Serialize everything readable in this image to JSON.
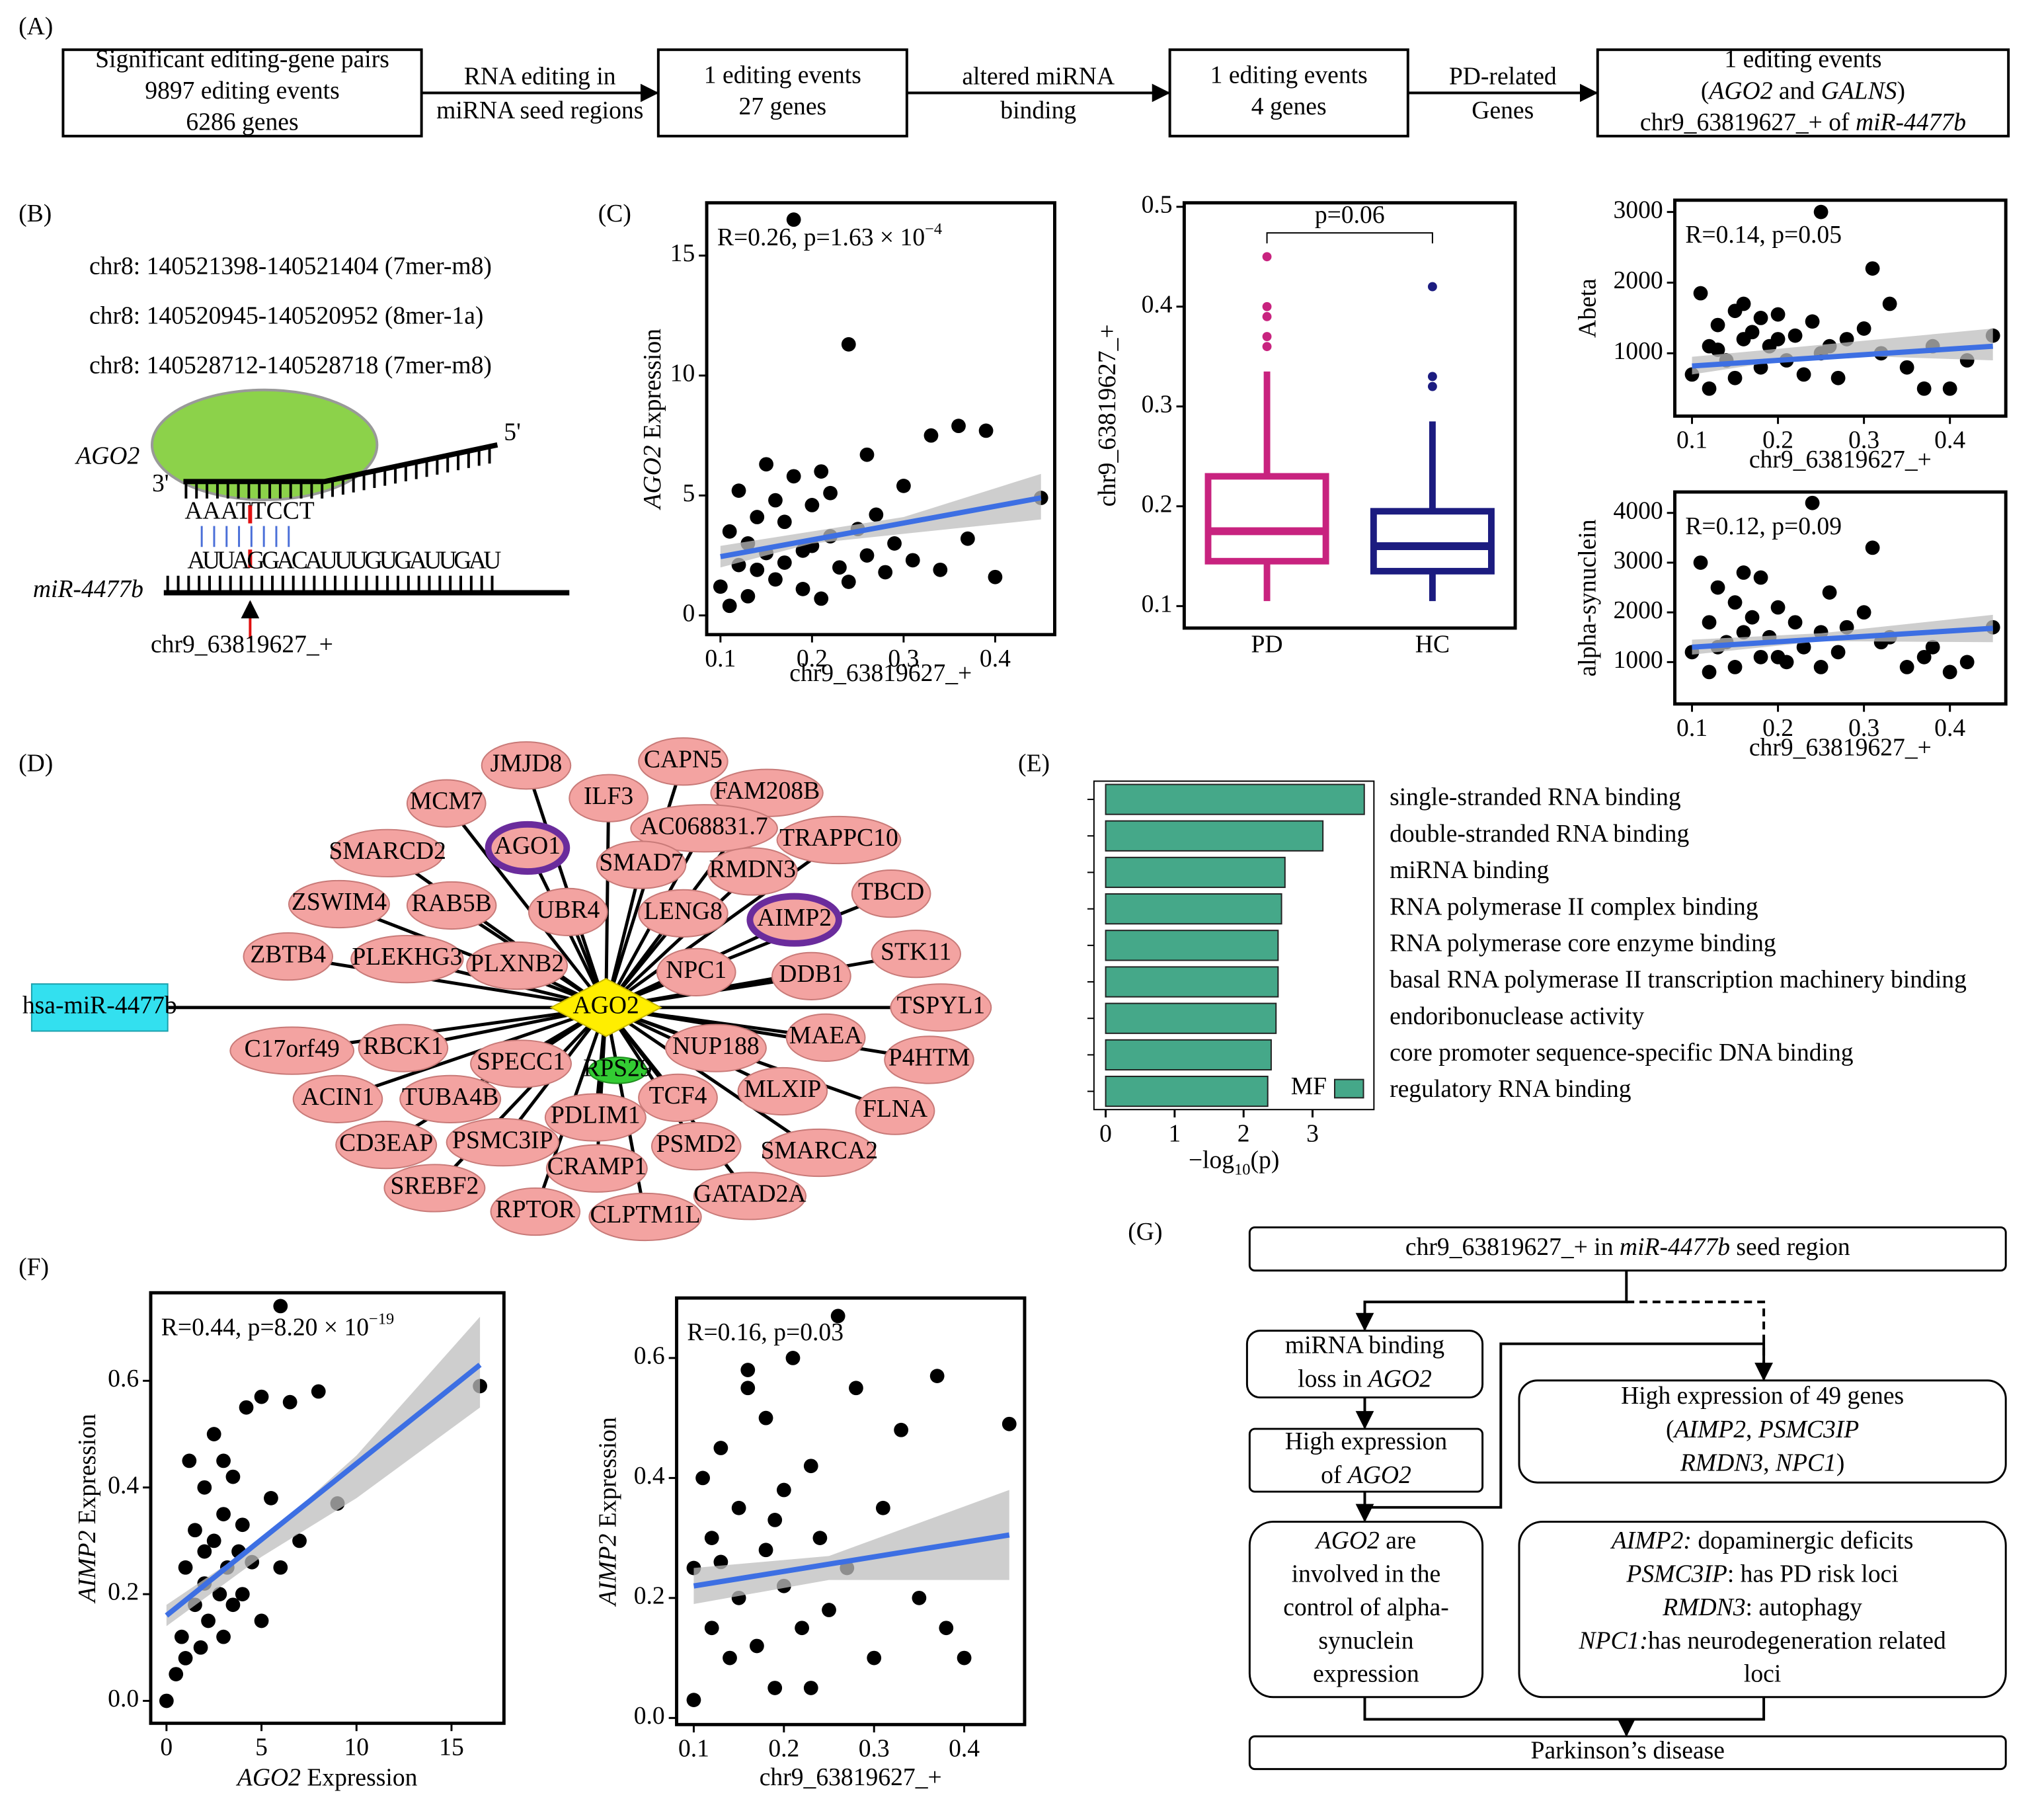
{
  "panel_labels": [
    "(A)",
    "(B)",
    "(C)",
    "(D)",
    "(E)",
    "(F)",
    "(G)"
  ],
  "pipeline": {
    "boxes": [
      [
        "Significant editing-gene pairs",
        "9897 editing events",
        "6286 genes"
      ],
      [
        "1 editing events",
        "27 genes"
      ],
      [
        "1 editing events",
        "4 genes"
      ],
      [
        "1 editing events",
        [
          {
            "text": "("
          },
          {
            "text": "AGO2",
            "italic": true
          },
          {
            "text": " and "
          },
          {
            "text": "GALNS",
            "italic": true
          },
          {
            "text": ")"
          }
        ],
        [
          {
            "text": "chr9_63819627_+ of "
          },
          {
            "text": "miR-4477b",
            "italic": true
          }
        ]
      ]
    ],
    "arrows": [
      [
        "RNA editing in",
        "miRNA seed regions"
      ],
      [
        "altered miRNA",
        "binding"
      ],
      [
        "PD-related",
        "Genes"
      ]
    ]
  },
  "binding_sites": [
    "chr8: 140521398-140521404 (7mer-m8)",
    "chr8: 140520945-140520952 (8mer-1a)",
    "chr8: 140528712-140528718 (7mer-m8)"
  ],
  "binding_diagram": {
    "protein": "AGO2",
    "three_prime": "3'",
    "five_prime": "5'",
    "target_seq": "AAATTCCT",
    "mirna_seq": "AUUAGGACAUUUGUGAUUGAU",
    "mirna": "miR-4477b",
    "site": "chr9_63819627_+"
  },
  "chart_data": [
    {
      "type": "scatter",
      "xlabel": "chr9_63819627_+",
      "ylabel": [
        {
          "text": "AGO2",
          "italic": true
        },
        {
          "text": " Expression"
        }
      ],
      "annotation": [
        {
          "text": "R=0.26, p=1.63 × 10"
        },
        {
          "text": "−4",
          "sup": true
        }
      ],
      "x": [
        0.1,
        0.11,
        0.12,
        0.12,
        0.13,
        0.14,
        0.15,
        0.15,
        0.16,
        0.17,
        0.17,
        0.18,
        0.18,
        0.19,
        0.2,
        0.2,
        0.21,
        0.22,
        0.22,
        0.23,
        0.24,
        0.24,
        0.25,
        0.26,
        0.26,
        0.27,
        0.28,
        0.29,
        0.3,
        0.31,
        0.33,
        0.34,
        0.36,
        0.37,
        0.39,
        0.4,
        0.45,
        0.13,
        0.16,
        0.19,
        0.21,
        0.11,
        0.14
      ],
      "y": [
        1.2,
        3.5,
        2.1,
        5.2,
        0.8,
        4.1,
        2.6,
        6.3,
        1.5,
        3.9,
        2.2,
        16.5,
        5.8,
        1.1,
        2.9,
        4.6,
        0.7,
        3.3,
        5.1,
        2.0,
        11.3,
        1.4,
        3.6,
        6.7,
        2.5,
        4.2,
        1.8,
        3.0,
        5.4,
        2.3,
        7.5,
        1.9,
        7.9,
        3.2,
        7.7,
        1.6,
        4.9,
        3.0,
        4.8,
        2.7,
        6.0,
        0.4,
        1.9
      ],
      "xlim": [
        0.085,
        0.465
      ],
      "ylim": [
        -0.8,
        17.2
      ],
      "xticks": [
        0.1,
        0.2,
        0.3,
        0.4
      ],
      "yticks": [
        0,
        5,
        10,
        15
      ],
      "fit": {
        "x": [
          0.1,
          0.45
        ],
        "y": [
          2.45,
          4.9
        ]
      },
      "band": {
        "x": [
          0.1,
          0.2,
          0.3,
          0.45
        ],
        "lower": [
          2.0,
          3.0,
          3.4,
          4.0
        ],
        "upper": [
          2.9,
          3.5,
          4.1,
          5.9
        ]
      },
      "point_color": "#000000",
      "fit_color": "#3d6fe3",
      "band_color": "#bdbdbd"
    },
    {
      "type": "box",
      "ylabel": "chr9_63819627_+",
      "categories": [
        "PD",
        "HC"
      ],
      "boxes": [
        {
          "low": 0.105,
          "q1": 0.145,
          "median": 0.175,
          "q3": 0.23,
          "high": 0.335,
          "outliers": [
            0.36,
            0.37,
            0.39,
            0.4,
            0.45
          ]
        },
        {
          "low": 0.105,
          "q1": 0.135,
          "median": 0.16,
          "q3": 0.195,
          "high": 0.285,
          "outliers": [
            0.32,
            0.33,
            0.42
          ]
        }
      ],
      "colors": [
        "#c8237f",
        "#1c1c80"
      ],
      "ylim": [
        0.078,
        0.504
      ],
      "yticks": [
        0.1,
        0.2,
        0.3,
        0.4,
        0.5
      ],
      "annotation": "p=0.06"
    },
    {
      "type": "scatter",
      "xlabel": "chr9_63819627_+",
      "ylabel": "Abeta",
      "annotation": "R=0.14, p=0.05",
      "x": [
        0.1,
        0.11,
        0.12,
        0.12,
        0.13,
        0.14,
        0.15,
        0.15,
        0.16,
        0.17,
        0.18,
        0.18,
        0.19,
        0.2,
        0.21,
        0.22,
        0.23,
        0.24,
        0.25,
        0.25,
        0.26,
        0.27,
        0.28,
        0.3,
        0.31,
        0.32,
        0.33,
        0.35,
        0.37,
        0.38,
        0.4,
        0.42,
        0.45,
        0.13,
        0.16,
        0.2
      ],
      "y": [
        700,
        1850,
        1100,
        500,
        1400,
        900,
        1600,
        650,
        1200,
        1300,
        800,
        1500,
        1100,
        1550,
        900,
        1250,
        700,
        1450,
        3000,
        1000,
        1100,
        650,
        1200,
        1350,
        2200,
        1000,
        1700,
        800,
        500,
        1100,
        500,
        900,
        1250,
        1050,
        1700,
        1200
      ],
      "xlim": [
        0.08,
        0.465
      ],
      "ylim": [
        111,
        3167
      ],
      "xticks": [
        0.1,
        0.2,
        0.3,
        0.4
      ],
      "yticks": [
        1000,
        2000,
        3000
      ],
      "fit": {
        "x": [
          0.1,
          0.45
        ],
        "y": [
          820,
          1100
        ]
      },
      "band": {
        "x": [
          0.1,
          0.25,
          0.45
        ],
        "lower": [
          700,
          980,
          900
        ],
        "upper": [
          950,
          1120,
          1350
        ]
      },
      "point_color": "#000000",
      "fit_color": "#3d6fe3",
      "band_color": "#bdbdbd"
    },
    {
      "type": "scatter",
      "xlabel": "chr9_63819627_+",
      "ylabel": "alpha-synuclein",
      "annotation": "R=0.12, p=0.09",
      "x": [
        0.1,
        0.11,
        0.12,
        0.12,
        0.13,
        0.14,
        0.15,
        0.15,
        0.16,
        0.17,
        0.18,
        0.18,
        0.19,
        0.2,
        0.21,
        0.22,
        0.23,
        0.24,
        0.25,
        0.25,
        0.26,
        0.27,
        0.28,
        0.3,
        0.31,
        0.32,
        0.33,
        0.35,
        0.37,
        0.38,
        0.4,
        0.42,
        0.45,
        0.13,
        0.16,
        0.2
      ],
      "y": [
        1200,
        3000,
        1800,
        800,
        2500,
        1400,
        2200,
        900,
        1600,
        1900,
        1100,
        2700,
        1500,
        2100,
        1000,
        1800,
        1300,
        4200,
        1600,
        900,
        2400,
        1200,
        1700,
        2000,
        3300,
        1400,
        1500,
        900,
        1100,
        1300,
        800,
        1000,
        1700,
        1300,
        2800,
        1100
      ],
      "xlim": [
        0.08,
        0.465
      ],
      "ylim": [
        158,
        4421
      ],
      "xticks": [
        0.1,
        0.2,
        0.3,
        0.4
      ],
      "yticks": [
        1000,
        2000,
        3000,
        4000
      ],
      "fit": {
        "x": [
          0.1,
          0.45
        ],
        "y": [
          1300,
          1680
        ]
      },
      "band": {
        "x": [
          0.1,
          0.25,
          0.45
        ],
        "lower": [
          1150,
          1420,
          1400
        ],
        "upper": [
          1450,
          1580,
          1950
        ]
      },
      "point_color": "#000000",
      "fit_color": "#3d6fe3",
      "band_color": "#bdbdbd"
    },
    {
      "type": "bar",
      "orientation": "horizontal",
      "categories": [
        "single-stranded RNA binding",
        "double-stranded RNA binding",
        "miRNA binding",
        "RNA polymerase II complex binding",
        "RNA polymerase core enzyme binding",
        "basal RNA polymerase II transcription machinery binding",
        "endoribonuclease activity",
        "core promoter sequence-specific DNA binding",
        "regulatory RNA binding"
      ],
      "values": [
        3.75,
        3.15,
        2.6,
        2.55,
        2.5,
        2.5,
        2.47,
        2.4,
        2.35
      ],
      "color": "#45a889",
      "xlim": [
        -0.17,
        3.89
      ],
      "xticks": [
        0,
        1,
        2,
        3
      ],
      "xlabel": [
        {
          "text": "−log"
        },
        {
          "text": "10",
          "sub": true
        },
        {
          "text": "(p)"
        }
      ],
      "legend": "MF",
      "legend_corner": "lower right"
    },
    {
      "type": "scatter",
      "xlabel": [
        {
          "text": "AGO2",
          "italic": true
        },
        {
          "text": " Expression"
        }
      ],
      "ylabel": [
        {
          "text": "AIMP2",
          "italic": true
        },
        {
          "text": " Expression"
        }
      ],
      "annotation": [
        {
          "text": "R=0.44, p=8.20 × 10"
        },
        {
          "text": "−19",
          "sup": true
        }
      ],
      "x": [
        0,
        0.5,
        0.8,
        1,
        1.2,
        1.5,
        1.5,
        1.8,
        2,
        2,
        2.2,
        2.5,
        2.5,
        2.8,
        3,
        3,
        3.2,
        3.5,
        3.5,
        3.8,
        4,
        4,
        4.2,
        4.5,
        5,
        5,
        5.5,
        6,
        6.5,
        7,
        8,
        9,
        16.5,
        1,
        2,
        3,
        6
      ],
      "y": [
        0,
        0.05,
        0.12,
        0.25,
        0.45,
        0.18,
        0.32,
        0.1,
        0.22,
        0.4,
        0.15,
        0.3,
        0.5,
        0.2,
        0.35,
        0.12,
        0.25,
        0.42,
        0.18,
        0.28,
        0.33,
        0.2,
        0.55,
        0.26,
        0.57,
        0.15,
        0.38,
        0.25,
        0.56,
        0.3,
        0.58,
        0.37,
        0.59,
        0.08,
        0.28,
        0.45,
        0.74
      ],
      "xlim": [
        -0.83,
        17.76
      ],
      "ylim": [
        -0.042,
        0.765
      ],
      "xticks": [
        0,
        5,
        10,
        15
      ],
      "yticks": [
        {
          "value": 0,
          "label": "0.0"
        },
        0.2,
        0.4,
        0.6
      ],
      "fit": {
        "x": [
          0,
          16.5
        ],
        "y": [
          0.16,
          0.63
        ]
      },
      "band": {
        "x": [
          0,
          5,
          10,
          16.5
        ],
        "lower": [
          0.14,
          0.27,
          0.38,
          0.55
        ],
        "upper": [
          0.18,
          0.3,
          0.46,
          0.72
        ]
      },
      "point_color": "#000000",
      "fit_color": "#3d6fe3",
      "band_color": "#bdbdbd"
    },
    {
      "type": "scatter",
      "xlabel": "chr9_63819627_+",
      "ylabel": [
        {
          "text": "AIMP2",
          "italic": true
        },
        {
          "text": " Expression"
        }
      ],
      "annotation": "R=0.16, p=0.03",
      "x": [
        0.1,
        0.1,
        0.11,
        0.12,
        0.12,
        0.13,
        0.14,
        0.15,
        0.15,
        0.16,
        0.17,
        0.18,
        0.18,
        0.19,
        0.2,
        0.2,
        0.21,
        0.22,
        0.23,
        0.24,
        0.25,
        0.26,
        0.27,
        0.28,
        0.3,
        0.31,
        0.33,
        0.35,
        0.37,
        0.38,
        0.4,
        0.45,
        0.13,
        0.16,
        0.19,
        0.23
      ],
      "y": [
        0.03,
        0.25,
        0.4,
        0.15,
        0.3,
        0.45,
        0.1,
        0.35,
        0.2,
        0.58,
        0.12,
        0.28,
        0.5,
        0.05,
        0.22,
        0.38,
        0.6,
        0.15,
        0.42,
        0.3,
        0.18,
        0.67,
        0.25,
        0.55,
        0.1,
        0.35,
        0.48,
        0.2,
        0.57,
        0.15,
        0.1,
        0.49,
        0.26,
        0.55,
        0.33,
        0.05
      ],
      "xlim": [
        0.081,
        0.467
      ],
      "ylim": [
        -0.011,
        0.7
      ],
      "xticks": [
        0.1,
        0.2,
        0.3,
        0.4
      ],
      "yticks": [
        {
          "value": 0,
          "label": "0.0"
        },
        0.2,
        0.4,
        0.6
      ],
      "fit": {
        "x": [
          0.1,
          0.45
        ],
        "y": [
          0.22,
          0.305
        ]
      },
      "band": {
        "x": [
          0.1,
          0.25,
          0.45
        ],
        "lower": [
          0.19,
          0.23,
          0.23
        ],
        "upper": [
          0.25,
          0.27,
          0.38
        ]
      },
      "point_color": "#000000",
      "fit_color": "#3d6fe3",
      "band_color": "#bdbdbd"
    }
  ],
  "network": {
    "mirna": "hsa-miR-4477b",
    "hub": "AGO2",
    "genes": [
      "JMJD8",
      "CAPN5",
      "MCM7",
      "ILF3",
      "FAM208B",
      "AC068831.7",
      "SMARCD2",
      "AGO1",
      "SMAD7",
      "RMDN3",
      "TRAPPC10",
      "ZSWIM4",
      "RAB5B",
      "UBR4",
      "LENG8",
      "AIMP2",
      "TBCD",
      "ZBTB4",
      "PLEKHG3",
      "PLXNB2",
      "NPC1",
      "DDB1",
      "STK11",
      "TSPYL1",
      "C17orf49",
      "RBCK1",
      "SPECC1",
      "RPS29",
      "NUP188",
      "MAEA",
      "P4HTM",
      "ACIN1",
      "TUBA4B",
      "TCF4",
      "MLXIP",
      "FLNA",
      "CD3EAP",
      "PSMC3IP",
      "PDLIM1",
      "PSMD2",
      "SMARCA2",
      "SREBF2",
      "CRAMP1",
      "GATAD2A",
      "RPTOR",
      "CLPTM1L"
    ]
  },
  "mechanism": {
    "boxes": [
      [
        [
          {
            "text": "chr9_63819627_+ in "
          },
          {
            "text": "miR-4477b",
            "italic": true
          },
          {
            "text": " seed region"
          }
        ]
      ],
      [
        "miRNA binding",
        [
          {
            "text": "loss in "
          },
          {
            "text": "AGO2",
            "italic": true
          }
        ]
      ],
      [
        "High expression",
        [
          {
            "text": "of "
          },
          {
            "text": "AGO2",
            "italic": true
          }
        ]
      ],
      [
        [
          {
            "text": "AGO2",
            "italic": true
          },
          {
            "text": " are"
          }
        ],
        "involved in the",
        "control of alpha-",
        "synuclein",
        "expression"
      ],
      [
        "High expression of 49 genes",
        [
          {
            "text": "("
          },
          {
            "text": "AIMP2",
            "italic": true
          },
          {
            "text": ", "
          },
          {
            "text": "PSMC3IP",
            "italic": true
          }
        ],
        [
          {
            "text": "RMDN3",
            "italic": true
          },
          {
            "text": ", "
          },
          {
            "text": "NPC1",
            "italic": true
          },
          {
            "text": ")"
          }
        ]
      ],
      [
        [
          {
            "text": "AIMP2:",
            "italic": true
          },
          {
            "text": " dopaminergic deficits"
          }
        ],
        [
          {
            "text": "PSMC3IP",
            "italic": true
          },
          {
            "text": ": has PD risk loci"
          }
        ],
        [
          {
            "text": "RMDN3",
            "italic": true
          },
          {
            "text": ": autophagy"
          }
        ],
        [
          {
            "text": "NPC1:",
            "italic": true
          },
          {
            "text": "has neurodegeneration related"
          }
        ],
        "loci"
      ],
      [
        "Parkinson’s disease"
      ]
    ]
  }
}
